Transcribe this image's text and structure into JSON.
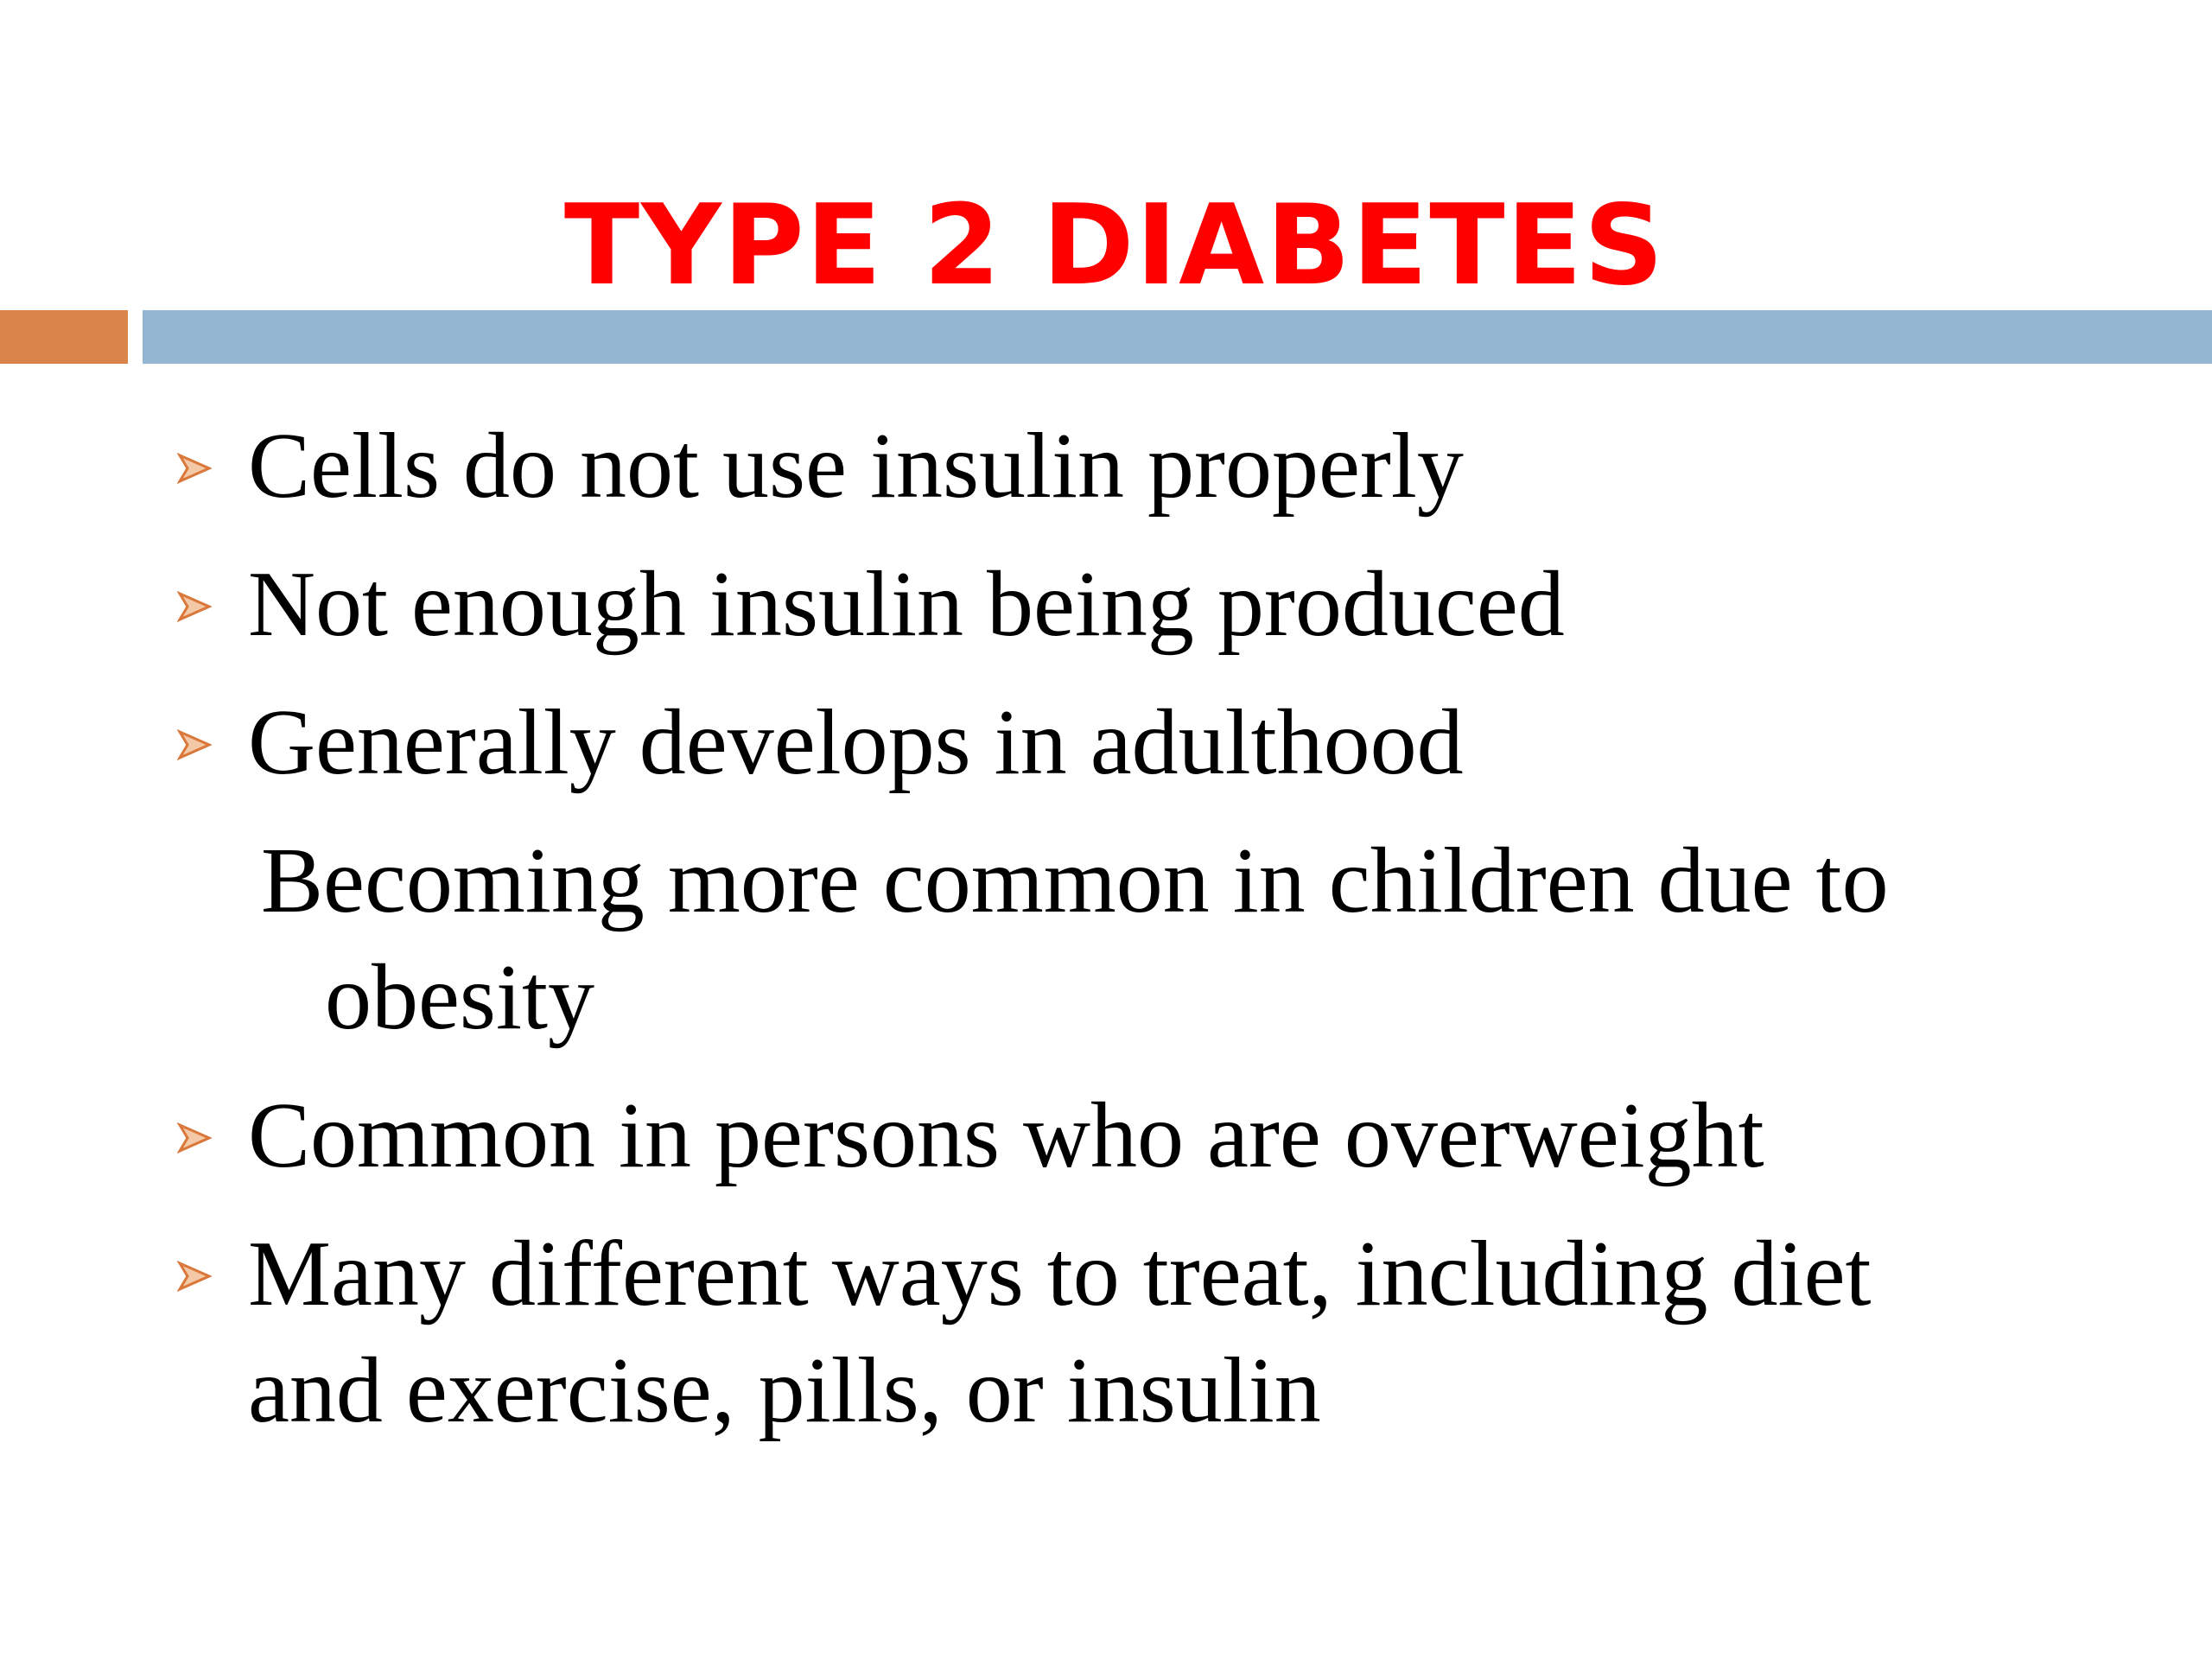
{
  "title": "TYPE 2 DIABETES",
  "items": [
    {
      "text": "Cells do not use insulin properly",
      "bullet": true
    },
    {
      "text": "Not enough insulin being produced",
      "bullet": true
    },
    {
      "text": "Generally develops in adulthood",
      "bullet": true
    },
    {
      "text": "Becoming more common in children due to obesity",
      "bullet": false
    },
    {
      "text": "Common in persons who are overweight",
      "bullet": true
    },
    {
      "text": "Many different ways to treat, including diet and exercise, pills, or insulin",
      "bullet": true
    }
  ]
}
